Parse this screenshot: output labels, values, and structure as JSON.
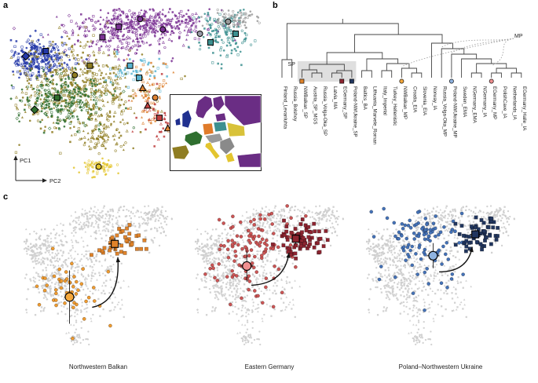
{
  "panels": {
    "a": "a",
    "b": "b",
    "c": "c"
  },
  "inset_map": {
    "region_colors": {
      "east_europe": "#6a2d84",
      "scandinavia": "#6a2d84",
      "finland": "#6a2d84",
      "baltic": "#6a2d84",
      "britain": "#20308f",
      "ireland": "#20308f",
      "france": "#2f6f2f",
      "iberia": "#8f7d22",
      "germany": "#e07b2a",
      "poland": "#3d9090",
      "ukraine": "#d8c23a",
      "central_europe": "#9a9a9a",
      "italy": "#e3c52f",
      "balkans": "#8a8a8a",
      "greece": "#e3c52f",
      "turkey": "#6a2d84"
    }
  },
  "chart_data": {
    "pca": {
      "type": "scatter",
      "ylabel": "PC1",
      "xlabel": "PC2",
      "clusters": [
        {
          "name": "purple-main",
          "color": "#7b3294",
          "shapes": [
            "circle",
            "square",
            "triangle"
          ],
          "n": 420,
          "cx": 0.55,
          "cy": 0.09,
          "sx": 0.12,
          "sy": 0.055
        },
        {
          "name": "purple-spread",
          "color": "#7b3294",
          "shapes": [
            "circle",
            "triangle",
            "diamond"
          ],
          "n": 140,
          "cx": 0.44,
          "cy": 0.17,
          "sx": 0.14,
          "sy": 0.07
        },
        {
          "name": "teal",
          "color": "#3d9090",
          "shapes": [
            "square",
            "circle"
          ],
          "n": 150,
          "cx": 0.86,
          "cy": 0.14,
          "sx": 0.05,
          "sy": 0.08
        },
        {
          "name": "gray",
          "color": "#9a9a9a",
          "shapes": [
            "circle"
          ],
          "n": 90,
          "cx": 0.89,
          "cy": 0.065,
          "sx": 0.045,
          "sy": 0.035
        },
        {
          "name": "navy",
          "color": "#2438a8",
          "shapes": [
            "circle",
            "square",
            "diamond"
          ],
          "n": 300,
          "cx": 0.11,
          "cy": 0.3,
          "sx": 0.07,
          "sy": 0.055
        },
        {
          "name": "olive-main",
          "color": "#8f7d22",
          "shapes": [
            "circle",
            "triangle",
            "square"
          ],
          "n": 520,
          "cx": 0.29,
          "cy": 0.46,
          "sx": 0.13,
          "sy": 0.13
        },
        {
          "name": "green",
          "color": "#2f6f2f",
          "shapes": [
            "circle",
            "square",
            "diamond"
          ],
          "n": 260,
          "cx": 0.21,
          "cy": 0.54,
          "sx": 0.08,
          "sy": 0.08
        },
        {
          "name": "olive-trail",
          "color": "#8f7d22",
          "shapes": [
            "circle",
            "triangle"
          ],
          "n": 90,
          "cx": 0.37,
          "cy": 0.74,
          "sx": 0.05,
          "sy": 0.06
        },
        {
          "name": "cyan",
          "color": "#58b4d2",
          "shapes": [
            "square"
          ],
          "n": 45,
          "cx": 0.5,
          "cy": 0.36,
          "sx": 0.06,
          "sy": 0.05
        },
        {
          "name": "orange-trail",
          "color": "#dd8233",
          "shapes": [
            "triangle",
            "square"
          ],
          "n": 70,
          "cx": 0.55,
          "cy": 0.5,
          "sx": 0.05,
          "sy": 0.1
        },
        {
          "name": "red-trail",
          "color": "#c04040",
          "shapes": [
            "triangle",
            "square"
          ],
          "n": 55,
          "cx": 0.6,
          "cy": 0.62,
          "sx": 0.05,
          "sy": 0.09
        },
        {
          "name": "yellow",
          "color": "#e3c52f",
          "shapes": [
            "circle"
          ],
          "n": 70,
          "cx": 0.355,
          "cy": 0.92,
          "sx": 0.035,
          "sy": 0.025
        }
      ],
      "highlights": [
        {
          "shape": "square",
          "color": "#7b3294",
          "x": 0.37,
          "y": 0.17
        },
        {
          "shape": "square",
          "color": "#7b3294",
          "x": 0.435,
          "y": 0.11
        },
        {
          "shape": "circle",
          "color": "#7b3294",
          "x": 0.52,
          "y": 0.065
        },
        {
          "shape": "circle",
          "color": "#7b3294",
          "x": 0.61,
          "y": 0.125
        },
        {
          "shape": "circle",
          "color": "#9a9aa8",
          "x": 0.758,
          "y": 0.15
        },
        {
          "shape": "square",
          "color": "#3d9090",
          "x": 0.8,
          "y": 0.2
        },
        {
          "shape": "circle",
          "color": "#9a9a9a",
          "x": 0.87,
          "y": 0.08
        },
        {
          "shape": "square",
          "color": "#3d9090",
          "x": 0.9,
          "y": 0.15
        },
        {
          "shape": "diamond",
          "color": "#2438a8",
          "x": 0.065,
          "y": 0.28
        },
        {
          "shape": "square",
          "color": "#2438a8",
          "x": 0.145,
          "y": 0.25
        },
        {
          "shape": "circle",
          "color": "#8f7d22",
          "x": 0.26,
          "y": 0.39
        },
        {
          "shape": "square",
          "color": "#8f7d22",
          "x": 0.32,
          "y": 0.335
        },
        {
          "shape": "square",
          "color": "#2f6f2f",
          "x": 0.19,
          "y": 0.52
        },
        {
          "shape": "diamond",
          "color": "#2f6f2f",
          "x": 0.1,
          "y": 0.59
        },
        {
          "shape": "square",
          "color": "#58b4d2",
          "x": 0.48,
          "y": 0.335
        },
        {
          "shape": "square",
          "color": "#58b4d2",
          "x": 0.516,
          "y": 0.405
        },
        {
          "shape": "triangle",
          "color": "#dd8233",
          "x": 0.53,
          "y": 0.465
        },
        {
          "shape": "circle",
          "color": "#dd8233",
          "x": 0.58,
          "y": 0.52
        },
        {
          "shape": "triangle",
          "color": "#c04040",
          "x": 0.55,
          "y": 0.567
        },
        {
          "shape": "square",
          "color": "#c04040",
          "x": 0.597,
          "y": 0.637
        },
        {
          "shape": "triangle",
          "color": "#dd8233",
          "x": 0.63,
          "y": 0.698
        },
        {
          "shape": "circle",
          "color": "#e3c52f",
          "x": 0.355,
          "y": 0.92
        }
      ]
    },
    "tree": {
      "type": "dendrogram",
      "sp_label": "SP",
      "mp_label": "MP",
      "leaves": [
        {
          "label": "Finland_Levanluhta"
        },
        {
          "label": "Russia_Bolshoy"
        },
        {
          "label": "NWBalkan_SP",
          "marker": {
            "shape": "square",
            "color": "#e0832a"
          }
        },
        {
          "label": "Austria_SP_MGS"
        },
        {
          "label": "Russia_Volga-Oka_SP"
        },
        {
          "label": "Latvia_MA"
        },
        {
          "label": "EGermany_SP",
          "marker": {
            "shape": "square",
            "color": "#8e2430"
          }
        },
        {
          "label": "Poland-NWUkraine_SP",
          "marker": {
            "shape": "square",
            "color": "#21365f"
          }
        },
        {
          "label": "Baltics_BA"
        },
        {
          "label": "Lithuania_Marvele_Roman"
        },
        {
          "label": "Italy_Imperial"
        },
        {
          "label": "Turkey_Hellenistic"
        },
        {
          "label": "NWBalkan_MP",
          "marker": {
            "shape": "circle",
            "color": "#f5a83c"
          }
        },
        {
          "label": "Croatia_EIA"
        },
        {
          "label": "Slovenia_EIA"
        },
        {
          "label": "Norway_IA"
        },
        {
          "label": "Russia_Volga-Oka_MP"
        },
        {
          "label": "Poland-NWUkraine_MP",
          "marker": {
            "shape": "circle",
            "color": "#8fb3e0"
          }
        },
        {
          "label": "Sweden_EMA"
        },
        {
          "label": "NGermany_EMA"
        },
        {
          "label": "NGermany_IA"
        },
        {
          "label": "EGermany_MP",
          "marker": {
            "shape": "circle",
            "color": "#f09090"
          }
        },
        {
          "label": "PolishCave_IA"
        },
        {
          "label": "Netherlands_IA"
        },
        {
          "label": "EGermany_Halle_IA"
        }
      ],
      "nodes": [
        {
          "id": "n0",
          "c": [
            "L0",
            "L1"
          ],
          "y": 72
        },
        {
          "id": "n1",
          "c": [
            "L3",
            "L4"
          ],
          "y": 89
        },
        {
          "id": "n2",
          "c": [
            "L2",
            "n1"
          ],
          "y": 85
        },
        {
          "id": "n3",
          "c": [
            "L5",
            "L6"
          ],
          "y": 89
        },
        {
          "id": "n4",
          "c": [
            "n3",
            "L7"
          ],
          "y": 86
        },
        {
          "id": "n5",
          "c": [
            "n2",
            "n4"
          ],
          "y": 78
        },
        {
          "id": "n6",
          "c": [
            "L8",
            "L9"
          ],
          "y": 86
        },
        {
          "id": "n7",
          "c": [
            "L10",
            "L11"
          ],
          "y": 86
        },
        {
          "id": "n8",
          "c": [
            "L13",
            "L14"
          ],
          "y": 89
        },
        {
          "id": "n9",
          "c": [
            "L12",
            "n8"
          ],
          "y": 83
        },
        {
          "id": "n10",
          "c": [
            "n7",
            "n9"
          ],
          "y": 77
        },
        {
          "id": "n11",
          "c": [
            "n6",
            "n10"
          ],
          "y": 71
        },
        {
          "id": "n12",
          "c": [
            "n5",
            "n11"
          ],
          "y": 63
        },
        {
          "id": "n13",
          "c": [
            "L19",
            "L20"
          ],
          "y": 89
        },
        {
          "id": "n14",
          "c": [
            "L21",
            "L22"
          ],
          "y": 89
        },
        {
          "id": "n15",
          "c": [
            "L23",
            "L24"
          ],
          "y": 89
        },
        {
          "id": "n16",
          "c": [
            "n14",
            "n15"
          ],
          "y": 83
        },
        {
          "id": "n17",
          "c": [
            "n13",
            "n16"
          ],
          "y": 77
        },
        {
          "id": "n18",
          "c": [
            "L18",
            "n17"
          ],
          "y": 71
        },
        {
          "id": "n19",
          "c": [
            "L17",
            "n18"
          ],
          "y": 65
        },
        {
          "id": "n20",
          "c": [
            "L16",
            "n19"
          ],
          "y": 58
        },
        {
          "id": "n21",
          "c": [
            "L15",
            "n20"
          ],
          "y": 51
        },
        {
          "id": "n22",
          "c": [
            "n12",
            "n21"
          ],
          "y": 40
        },
        {
          "id": "n23",
          "c": [
            "n0",
            "n22"
          ],
          "y": 26
        }
      ],
      "sp_box": {
        "from": 2,
        "to": 7
      },
      "mp_targets": [
        {
          "leaf": 12,
          "y": 81
        },
        {
          "leaf": 16,
          "y": 56
        },
        {
          "leaf": 17,
          "y": 63
        },
        {
          "leaf": 21,
          "y": 80
        }
      ]
    },
    "gray_color": "#cdcdcd",
    "projections": [
      {
        "caption": "Northwestern Balkan",
        "circles": {
          "color": "#ef9b30",
          "n": 48,
          "cx": 0.32,
          "cy": 0.6,
          "sx": 0.13,
          "sy": 0.11
        },
        "squares": {
          "color": "#e0832a",
          "n": 38,
          "cx": 0.65,
          "cy": 0.26,
          "sx": 0.075,
          "sy": 0.055
        },
        "big_circle": {
          "x": 0.31,
          "y": 0.63,
          "color": "#f5a83c",
          "eb_v": 34,
          "eb_h": 7
        },
        "big_square": {
          "x": 0.61,
          "y": 0.27,
          "color": "#e0832a",
          "eb_v": 8,
          "eb_h": 8
        },
        "arrow": {
          "x1": 0.46,
          "y1": 0.7,
          "cx": 0.65,
          "cy": 0.66,
          "x2": 0.63,
          "y2": 0.36
        }
      },
      {
        "caption": "Eastern Germany",
        "circles": {
          "color": "#cc5555",
          "n": 100,
          "cx": 0.4,
          "cy": 0.27,
          "sx": 0.16,
          "sy": 0.11
        },
        "circles2": {
          "n": 28,
          "cx": 0.36,
          "cy": 0.52,
          "sx": 0.13,
          "sy": 0.1
        },
        "squares": {
          "color": "#8e2430",
          "n": 75,
          "cx": 0.7,
          "cy": 0.24,
          "sx": 0.08,
          "sy": 0.055
        },
        "big_circle": {
          "x": 0.35,
          "y": 0.42,
          "color": "#f09090",
          "eb_v": 20,
          "eb_h": 8
        },
        "big_square": {
          "x": 0.675,
          "y": 0.235,
          "color": "#8e2430",
          "eb_v": 7,
          "eb_h": 7
        },
        "arrow": {
          "x1": 0.38,
          "y1": 0.55,
          "cx": 0.6,
          "cy": 0.54,
          "x2": 0.63,
          "y2": 0.33
        }
      },
      {
        "caption": "Poland–Northwestern Ukraine",
        "circles": {
          "color": "#4472b8",
          "n": 85,
          "cx": 0.38,
          "cy": 0.21,
          "sx": 0.125,
          "sy": 0.085
        },
        "circles2": {
          "n": 22,
          "cx": 0.42,
          "cy": 0.46,
          "sx": 0.13,
          "sy": 0.13
        },
        "squares": {
          "color": "#21365f",
          "n": 60,
          "cx": 0.75,
          "cy": 0.21,
          "sx": 0.08,
          "sy": 0.05
        },
        "big_circle": {
          "x": 0.45,
          "y": 0.35,
          "color": "#8fb3e0",
          "eb_v": 16,
          "eb_h": 8
        },
        "big_square": {
          "x": 0.73,
          "y": 0.205,
          "color": "#21365f",
          "eb_v": 7,
          "eb_h": 7
        },
        "arrow": {
          "x1": 0.49,
          "y1": 0.46,
          "cx": 0.68,
          "cy": 0.46,
          "x2": 0.71,
          "y2": 0.29
        }
      }
    ]
  }
}
